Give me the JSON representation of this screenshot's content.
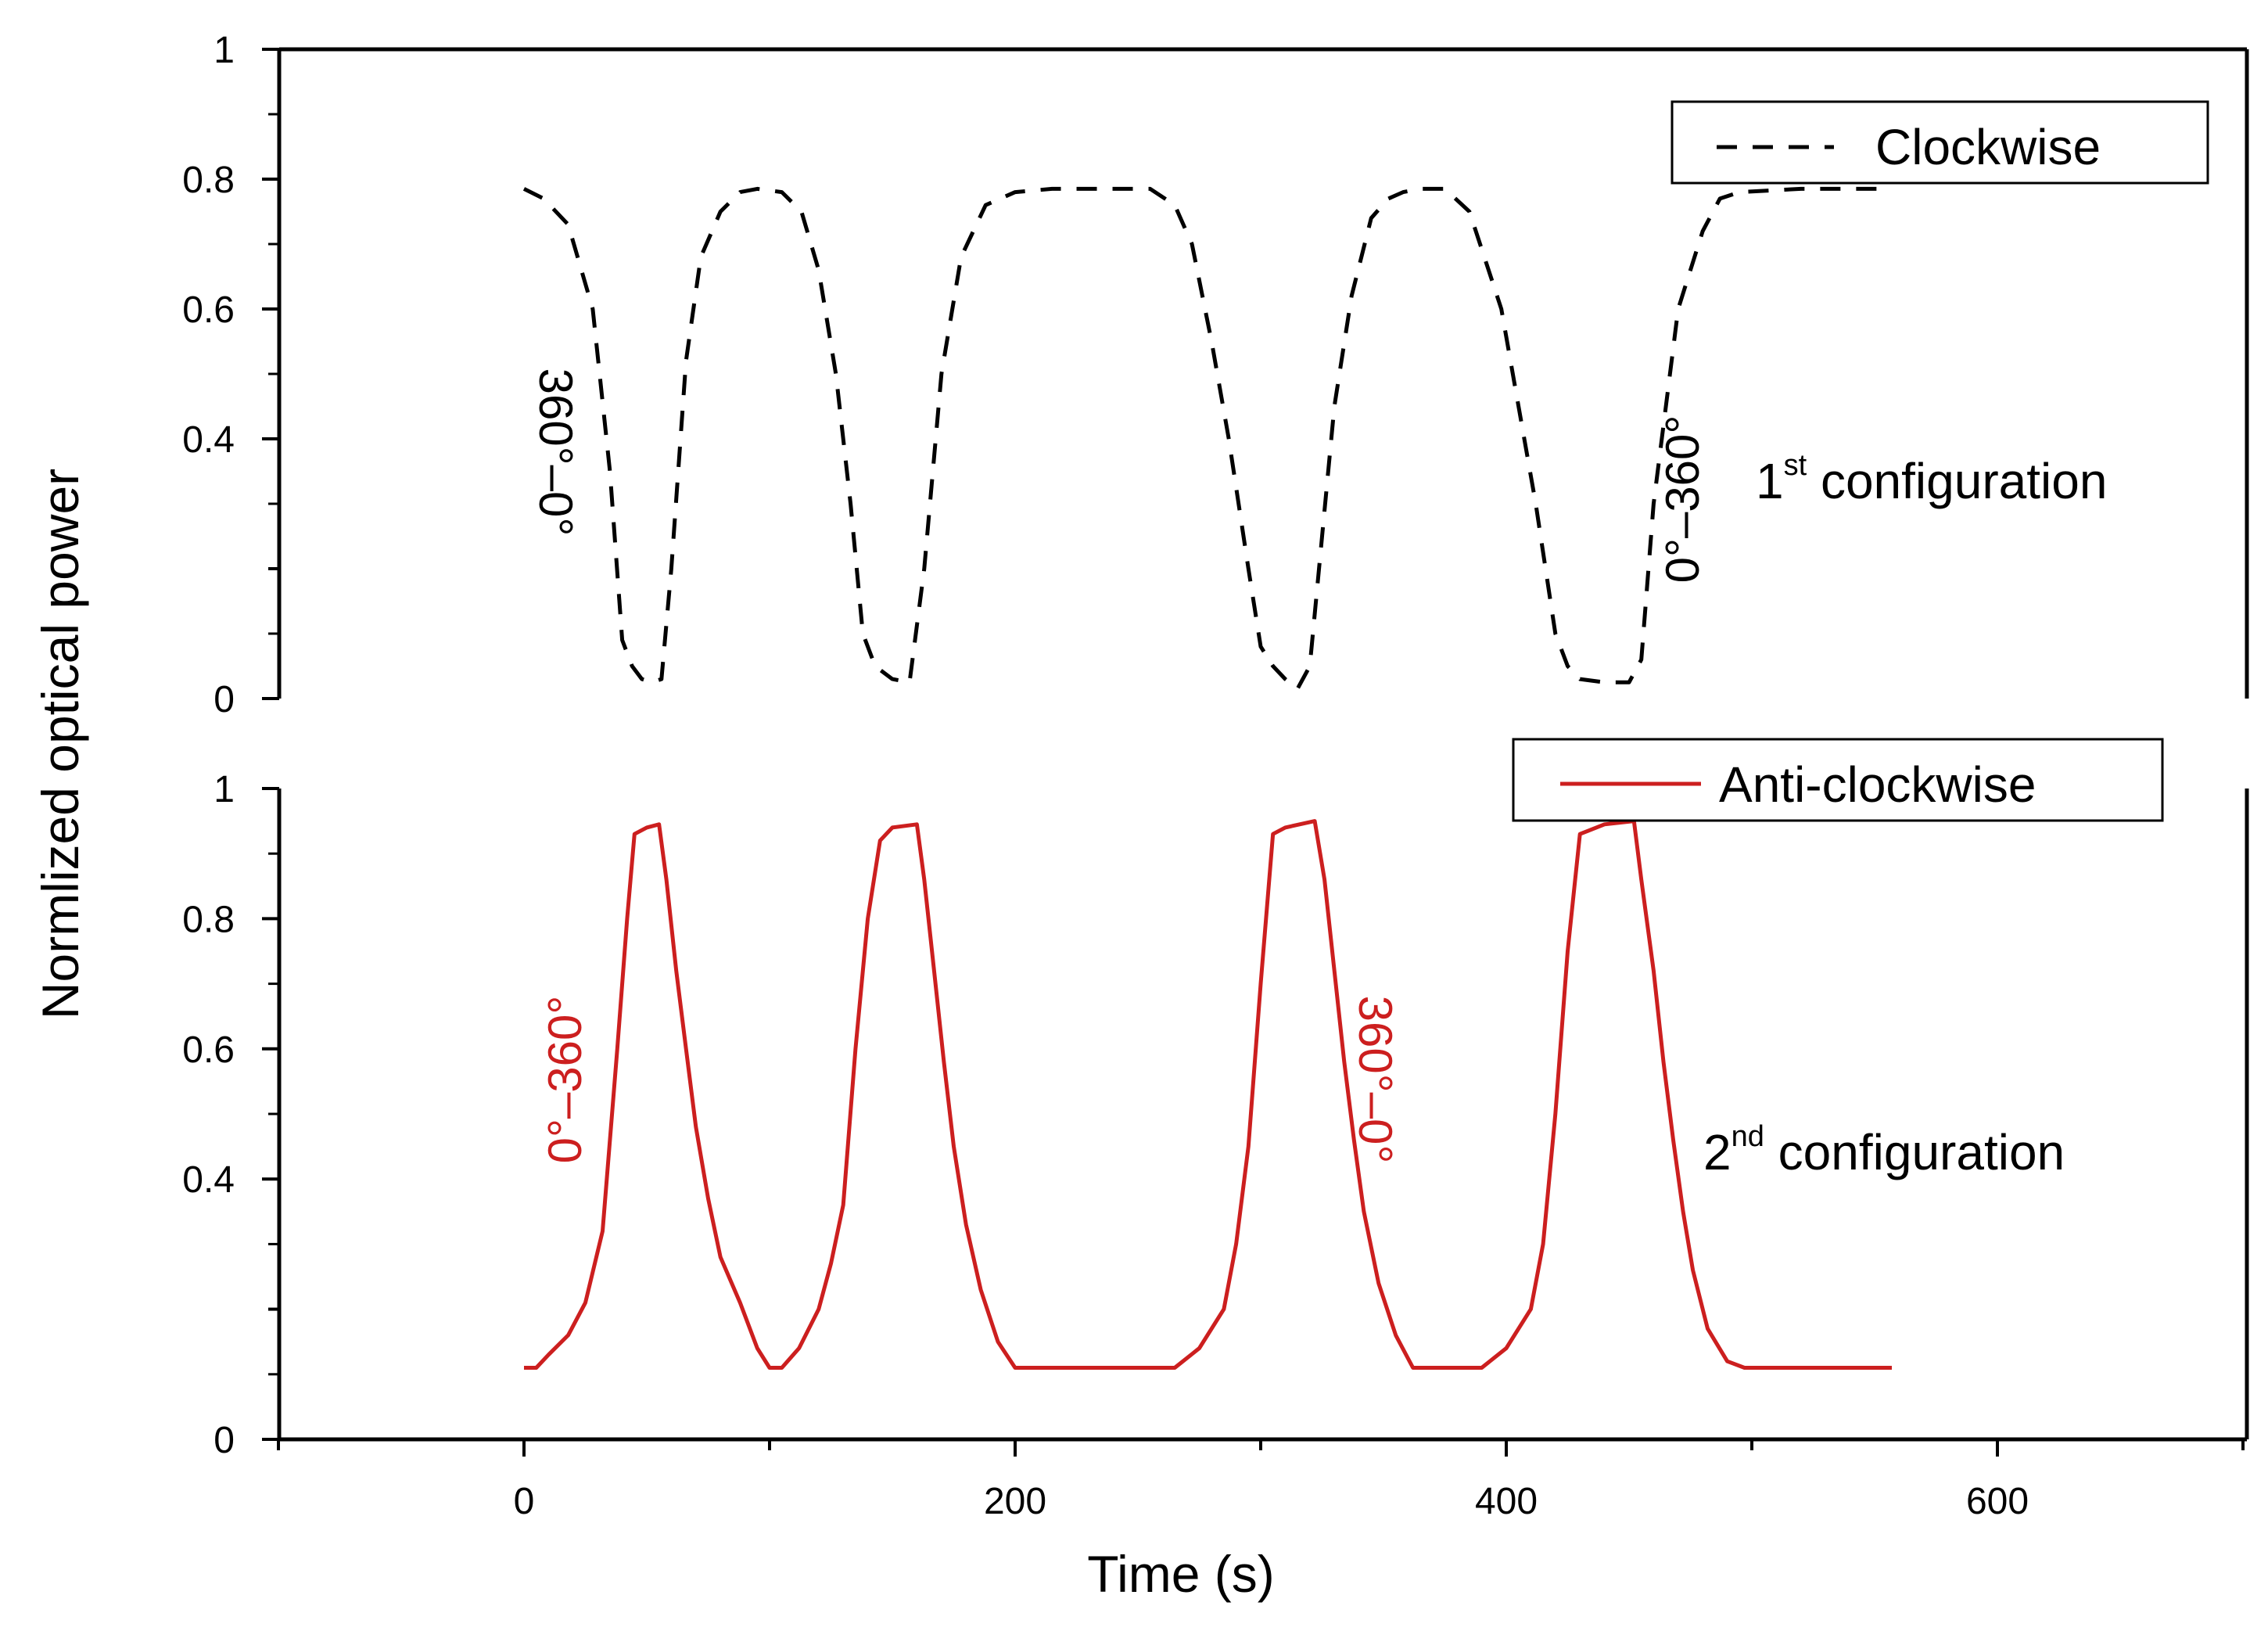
{
  "chart_data": [
    {
      "type": "line",
      "panel": "top",
      "ylabel": "Normlized optical power",
      "ylim": [
        0,
        1
      ],
      "xlim": [
        -100,
        700
      ],
      "yticks": [
        0,
        0.2,
        0.4,
        0.6,
        0.8,
        1
      ],
      "ytick_labels": [
        "0",
        "0.4",
        "0.6",
        "0.8",
        "1"
      ],
      "ytick_label_values": [
        0,
        0.4,
        0.6,
        0.8,
        1
      ],
      "legend": {
        "label": "Clockwise",
        "placement": "top-right"
      },
      "config_label": {
        "main": "1",
        "sup": "st",
        "rest": " configuration"
      },
      "annotations": [
        "360°–0°",
        "0°–360°"
      ],
      "color": "#000000",
      "line_style": "dashed",
      "series": [
        {
          "name": "Clockwise",
          "x": [
            0,
            8,
            18,
            28,
            35,
            40,
            44,
            48,
            52,
            56,
            60,
            66,
            72,
            80,
            88,
            95,
            105,
            113,
            120,
            127,
            133,
            138,
            143,
            150,
            157,
            163,
            170,
            178,
            188,
            200,
            215,
            240,
            255,
            265,
            272,
            280,
            287,
            295,
            300,
            305,
            310,
            315,
            320,
            325,
            330,
            337,
            345,
            352,
            358,
            365,
            375,
            385,
            398,
            405,
            412,
            420,
            425,
            430,
            440,
            450,
            455,
            460,
            470,
            480,
            487,
            495,
            520,
            557
          ],
          "y": [
            0.785,
            0.77,
            0.73,
            0.6,
            0.35,
            0.09,
            0.05,
            0.03,
            0.025,
            0.03,
            0.2,
            0.52,
            0.68,
            0.75,
            0.78,
            0.785,
            0.78,
            0.75,
            0.66,
            0.5,
            0.3,
            0.1,
            0.05,
            0.03,
            0.025,
            0.2,
            0.5,
            0.68,
            0.76,
            0.78,
            0.785,
            0.785,
            0.785,
            0.76,
            0.7,
            0.55,
            0.4,
            0.2,
            0.08,
            0.05,
            0.03,
            0.015,
            0.05,
            0.25,
            0.45,
            0.62,
            0.74,
            0.77,
            0.78,
            0.785,
            0.785,
            0.75,
            0.6,
            0.45,
            0.3,
            0.1,
            0.05,
            0.03,
            0.025,
            0.025,
            0.06,
            0.3,
            0.6,
            0.72,
            0.77,
            0.78,
            0.785,
            0.785
          ]
        }
      ]
    },
    {
      "type": "line",
      "panel": "bottom",
      "xlabel": "Time (s)",
      "ylim": [
        0,
        1
      ],
      "xlim": [
        -100,
        700
      ],
      "xticks": [
        -100,
        0,
        100,
        200,
        300,
        400,
        500,
        600,
        700
      ],
      "xtick_labels": [
        "0",
        "200",
        "400",
        "600"
      ],
      "xtick_label_values": [
        0,
        200,
        400,
        600
      ],
      "yticks": [
        0,
        0.2,
        0.4,
        0.6,
        0.8,
        1
      ],
      "ytick_labels": [
        "0",
        "0.4",
        "0.6",
        "0.8",
        "1"
      ],
      "ytick_label_values": [
        0,
        0.4,
        0.6,
        0.8,
        1
      ],
      "legend": {
        "label": "Anti-clockwise",
        "placement": "top-right"
      },
      "config_label": {
        "main": "2",
        "sup": "nd",
        "rest": " configuration"
      },
      "annotations": [
        "0°–360°",
        "360°–0°"
      ],
      "color": "#cc1f1f",
      "line_style": "solid",
      "series": [
        {
          "name": "Anti-clockwise",
          "x": [
            0,
            5,
            10,
            18,
            25,
            32,
            38,
            42,
            45,
            50,
            55,
            58,
            62,
            66,
            70,
            75,
            80,
            88,
            95,
            100,
            105,
            112,
            120,
            125,
            130,
            135,
            140,
            145,
            150,
            160,
            163,
            167,
            171,
            175,
            180,
            186,
            193,
            200,
            230,
            265,
            275,
            285,
            290,
            295,
            300,
            305,
            310,
            322,
            326,
            330,
            334,
            338,
            342,
            348,
            355,
            362,
            375,
            390,
            400,
            410,
            415,
            420,
            425,
            430,
            440,
            452,
            455,
            460,
            464,
            468,
            472,
            476,
            482,
            490,
            497,
            520,
            557
          ],
          "y": [
            0.11,
            0.11,
            0.13,
            0.16,
            0.21,
            0.32,
            0.6,
            0.8,
            0.93,
            0.94,
            0.945,
            0.86,
            0.72,
            0.6,
            0.48,
            0.37,
            0.28,
            0.21,
            0.14,
            0.11,
            0.11,
            0.14,
            0.2,
            0.27,
            0.36,
            0.6,
            0.8,
            0.92,
            0.94,
            0.945,
            0.86,
            0.72,
            0.58,
            0.45,
            0.33,
            0.23,
            0.15,
            0.11,
            0.11,
            0.11,
            0.14,
            0.2,
            0.3,
            0.45,
            0.7,
            0.93,
            0.94,
            0.95,
            0.86,
            0.72,
            0.58,
            0.46,
            0.35,
            0.24,
            0.16,
            0.11,
            0.11,
            0.11,
            0.14,
            0.2,
            0.3,
            0.5,
            0.75,
            0.93,
            0.945,
            0.95,
            0.86,
            0.72,
            0.58,
            0.46,
            0.35,
            0.26,
            0.17,
            0.12,
            0.11,
            0.11,
            0.11
          ]
        }
      ]
    }
  ]
}
